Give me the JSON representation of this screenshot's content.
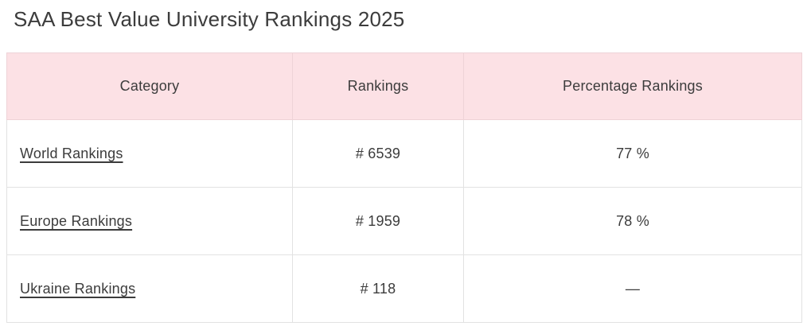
{
  "page": {
    "title": "SAA Best Value University Rankings 2025"
  },
  "table": {
    "headers": [
      "Category",
      "Rankings",
      "Percentage Rankings"
    ],
    "rows": [
      {
        "category": "World Rankings",
        "rank": "# 6539",
        "percent": "77 %"
      },
      {
        "category": "Europe Rankings",
        "rank": "# 1959",
        "percent": "78 %"
      },
      {
        "category": "Ukraine Rankings",
        "rank": "# 118",
        "percent": "—"
      }
    ]
  },
  "colors": {
    "header_bg": "#fce1e5",
    "header_border": "#eed3d7",
    "row_border": "#e2e2e2",
    "text": "#3c3c3c"
  }
}
